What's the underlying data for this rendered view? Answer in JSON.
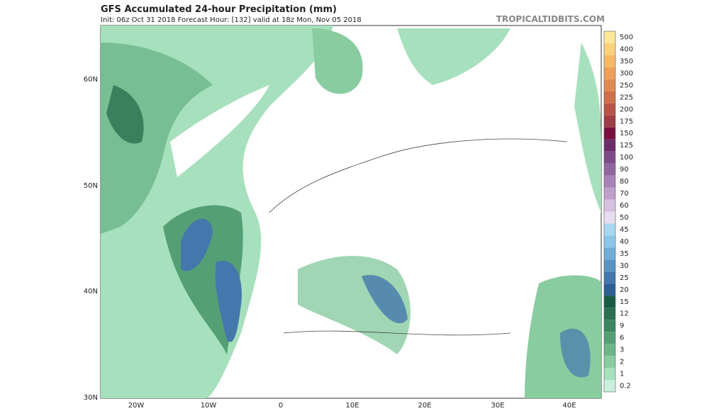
{
  "header": {
    "title": "GFS Accumulated 24-hour Precipitation (mm)",
    "subtitle": "Init: 06z Oct 31 2018   Forecast Hour: [132]   valid at 18z Mon, Nov 05 2018",
    "source": "TROPICALTIDBITS.COM"
  },
  "map": {
    "lat_labels": [
      "60N",
      "50N",
      "40N",
      "30N"
    ],
    "lon_labels": [
      "20W",
      "10W",
      "0",
      "10E",
      "20E",
      "30E",
      "40E"
    ]
  },
  "legend": {
    "labels": [
      "500",
      "400",
      "350",
      "300",
      "250",
      "225",
      "200",
      "175",
      "150",
      "125",
      "100",
      "90",
      "80",
      "70",
      "60",
      "50",
      "45",
      "40",
      "35",
      "30",
      "25",
      "20",
      "15",
      "12",
      "9",
      "6",
      "3",
      "2",
      "1",
      "0.2"
    ],
    "colors": [
      "#fde89a",
      "#fbd27a",
      "#f6b866",
      "#eea05a",
      "#e08a52",
      "#cf704a",
      "#b85446",
      "#a03c44",
      "#7a0f3e",
      "#6c2c6c",
      "#7e4a88",
      "#9066a0",
      "#a882b8",
      "#bfa0cc",
      "#d6c0e0",
      "#e8dcf0",
      "#a8d8f0",
      "#8ec6e8",
      "#70aed8",
      "#5a94c4",
      "#4478ac",
      "#2e5e94",
      "#1a5a44",
      "#2a7050",
      "#3c8660",
      "#54a074",
      "#6cb688",
      "#88cca0",
      "#a6e0bc",
      "#c8f0dc"
    ]
  }
}
